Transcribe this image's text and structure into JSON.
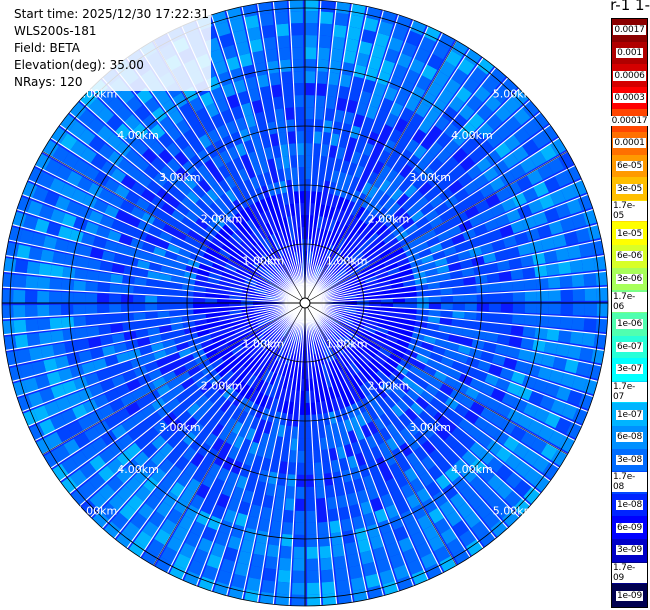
{
  "info": {
    "start_time": "Start time: 2025/12/30 17:22:31",
    "device": "WLS200s-181",
    "field": "Field: BETA",
    "elevation": "Elevation(deg): 35.00",
    "nrays": "NRays: 120"
  },
  "unit_title": "-1 sr-1",
  "range_labels": [
    "1.00km",
    "2.00km",
    "3.00km",
    "4.00km",
    "5.00km"
  ],
  "colorbar": [
    {
      "label": "0.0017",
      "color": "#8b0000"
    },
    {
      "label": "0.001",
      "color": "#b00000"
    },
    {
      "label": "0.0006",
      "color": "#d40000"
    },
    {
      "label": "0.0003",
      "color": "#ff0000"
    },
    {
      "label": "0.00017",
      "color": "#ff4500"
    },
    {
      "label": "0.0001",
      "color": "#ff7000"
    },
    {
      "label": "6e-05",
      "color": "#ff9a00"
    },
    {
      "label": "3e-05",
      "color": "#ffbf00"
    },
    {
      "label": "1.7e-05",
      "color": "#ffe000"
    },
    {
      "label": "1e-05",
      "color": "#ffff00"
    },
    {
      "label": "6e-06",
      "color": "#d8ff28"
    },
    {
      "label": "3e-06",
      "color": "#a8ff5a"
    },
    {
      "label": "1.7e-06",
      "color": "#78ff88"
    },
    {
      "label": "1e-06",
      "color": "#50ffb0"
    },
    {
      "label": "6e-07",
      "color": "#28ffd8"
    },
    {
      "label": "3e-07",
      "color": "#00ffff"
    },
    {
      "label": "1.7e-07",
      "color": "#00d8ff"
    },
    {
      "label": "1e-07",
      "color": "#00b4ff"
    },
    {
      "label": "6e-08",
      "color": "#0090ff"
    },
    {
      "label": "3e-08",
      "color": "#006cff"
    },
    {
      "label": "1.7e-08",
      "color": "#0048ff"
    },
    {
      "label": "1e-08",
      "color": "#0024ff"
    },
    {
      "label": "6e-09",
      "color": "#0000ff"
    },
    {
      "label": "3e-09",
      "color": "#0000c8"
    },
    {
      "label": "1.7e-09",
      "color": "#00008c"
    },
    {
      "label": "1e-09",
      "color": "#000050"
    }
  ],
  "field_colors": [
    "#0000ff",
    "#0a1aff",
    "#0044ff",
    "#0066ff",
    "#0090ff",
    "#00b4ff"
  ]
}
